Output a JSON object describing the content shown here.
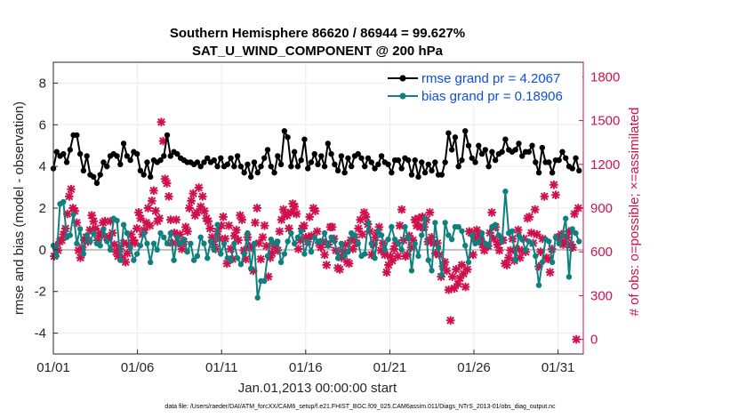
{
  "chart_data": {
    "type": "line",
    "title": "Southern Hemisphere 86620 / 86944 = 99.627%",
    "subtitle": "SAT_U_WIND_COMPONENT @ 200 hPa",
    "xlabel": "Jan.01,2013 00:00:00 start",
    "ylabel": "rmse and bias (model - observation)",
    "ylabel_right": "# of obs: o=possible; ×=assimilated",
    "xlim": [
      0,
      31.5
    ],
    "ylim": [
      -5,
      9
    ],
    "ylim_right": [
      -100,
      1900
    ],
    "x_ticks": [
      {
        "x": 0,
        "label": "01/01"
      },
      {
        "x": 5,
        "label": "01/06"
      },
      {
        "x": 10,
        "label": "01/11"
      },
      {
        "x": 15,
        "label": "01/16"
      },
      {
        "x": 20,
        "label": "01/21"
      },
      {
        "x": 25,
        "label": "01/26"
      },
      {
        "x": 30,
        "label": "01/31"
      }
    ],
    "y_ticks": [
      -4,
      -2,
      0,
      2,
      4,
      6,
      8
    ],
    "y_ticks_right": [
      0,
      300,
      600,
      900,
      1200,
      1500,
      1800
    ],
    "grid": true,
    "legend_position": "top-right",
    "footer": "data file: /Users/raeder/DAI/ATM_forcXX/CAM6_setup/f.e21.FHIST_BGC.f09_025.CAM6assim.011/Diags_NTrS_2013-01/obs_diag_output.nc",
    "colors": {
      "rmse": "#000000",
      "bias": "#0f8080",
      "obs": "#d0104c",
      "zero_line": "#bfbfbf"
    },
    "series": [
      {
        "name": "rmse grand pr = 4.2067",
        "key": "rmse",
        "values": [
          3.9,
          4.7,
          4.5,
          4.6,
          4.2,
          4.8,
          5.5,
          5.5,
          4.6,
          3.8,
          4.5,
          3.6,
          3.5,
          3.2,
          3.6,
          4.2,
          4.0,
          4.5,
          4.6,
          4.5,
          4.1,
          5.1,
          4.5,
          4.3,
          4.7,
          4.6,
          3.8,
          3.6,
          4.2,
          3.5,
          4.3,
          4.2,
          4.3,
          4.5,
          5.5,
          4.5,
          4.7,
          4.6,
          4.4,
          4.3,
          4.2,
          4.2,
          4.1,
          4.2,
          4.0,
          4.2,
          4.4,
          4.2,
          4.3,
          4.0,
          4.4,
          4.0,
          4.1,
          4.4,
          4.0,
          4.5,
          4.0,
          3.7,
          4.1,
          3.5,
          4.2,
          3.7,
          4.0,
          4.4,
          4.8,
          4.0,
          3.7,
          4.5,
          4.1,
          5.7,
          5.4,
          4.0,
          4.7,
          4.0,
          4.3,
          5.3,
          3.9,
          4.2,
          4.6,
          4.1,
          4.5,
          4.0,
          5.1,
          4.6,
          4.1,
          3.8,
          4.5,
          3.7,
          4.4,
          4.0,
          4.5,
          4.6,
          4.4,
          4.0,
          4.4,
          4.2,
          3.9,
          4.1,
          4.5,
          4.2,
          4.1,
          3.7,
          4.3,
          4.3,
          3.9,
          4.4,
          4.3,
          3.6,
          4.3,
          3.5,
          4.2,
          3.7,
          4.1,
          3.8,
          4.2,
          3.6,
          3.6,
          4.2,
          5.6,
          4.8,
          5.4,
          4.0,
          4.3,
          5.7,
          5.0,
          4.4,
          4.2,
          5.0,
          4.6,
          4.8,
          4.0,
          4.7,
          4.3,
          4.6,
          4.7,
          5.3,
          4.8,
          4.7,
          4.8,
          5.1,
          4.5,
          4.7,
          4.7,
          5.0,
          4.2,
          3.7,
          4.9,
          4.2,
          4.2,
          3.7,
          4.3,
          4.3,
          4.7,
          4.4,
          4.0,
          3.9,
          4.4,
          3.8
        ]
      },
      {
        "name": "bias grand pr = 0.18906",
        "key": "bias",
        "values": [
          0.2,
          -0.3,
          2.2,
          2.3,
          0.6,
          0.7,
          1.7,
          0.3,
          1.0,
          -0.2,
          0.7,
          0.4,
          0.8,
          0.3,
          0.2,
          1.0,
          0.4,
          0.0,
          1.5,
          1.4,
          -0.5,
          1.2,
          0.8,
          0.1,
          -0.5,
          -0.2,
          0.2,
          0.8,
          0.3,
          -0.6,
          0.3,
          0.0,
          0.8,
          0.6,
          0.3,
          0.8,
          -0.5,
          0.6,
          0.3,
          0.5,
          -0.1,
          0.3,
          -0.5,
          -0.3,
          0.6,
          0.3,
          -0.4,
          0.4,
          0.0,
          1.2,
          -0.2,
          0.3,
          -0.4,
          -0.5,
          0.3,
          -0.4,
          -0.7,
          -0.2,
          0.8,
          -0.9,
          0.3,
          -2.3,
          -1.5,
          -1.5,
          -0.3,
          0.5,
          0.3,
          0.4,
          -0.6,
          -0.2,
          0.4,
          0.8,
          0.3,
          0.6,
          0.9,
          -0.2,
          0.4,
          -0.1,
          0.6,
          0.4,
          0.4,
          0.8,
          0.2,
          0.6,
          0.4,
          -0.4,
          0.3,
          -0.3,
          -0.1,
          0.8,
          0.7,
          0.3,
          -0.3,
          -0.2,
          1.3,
          0.3,
          -0.4,
          0.9,
          0.7,
          0.0,
          0.5,
          1.1,
          0.5,
          0.3,
          0.0,
          1.1,
          0.6,
          -1.0,
          0.3,
          -0.3,
          0.7,
          1.5,
          -0.5,
          -1.0,
          1.3,
          0.1,
          -1.2,
          1.3,
          0.7,
          0.5,
          1.1,
          1.1,
          0.9,
          0.2,
          -0.6,
          0.7,
          0.3,
          0.4,
          0.8,
          0.3,
          0.2,
          1.1,
          1.2,
          0.7,
          0.4,
          2.8,
          0.8,
          0.9,
          -0.5,
          0.7,
          0.5,
          0.0,
          0.4,
          0.3,
          -0.3,
          -1.7,
          -0.6,
          0.5,
          0.4,
          -0.6,
          0.6,
          0.3,
          0.7,
          1.5,
          -1.3,
          1.0,
          0.8,
          0.4
        ]
      },
      {
        "name": "obs assimilated",
        "key": "obs",
        "values": [
          570,
          640,
          610,
          670,
          680,
          720,
          760,
          860,
          980,
          1030,
          900,
          880,
          800,
          610,
          560,
          630,
          680,
          700,
          670,
          750,
          850,
          810,
          760,
          680,
          710,
          730,
          800,
          810,
          700,
          690,
          810,
          730,
          650,
          600,
          570,
          620,
          560,
          660,
          530,
          590,
          650,
          720,
          680,
          660,
          760,
          870,
          830,
          720,
          750,
          800,
          900,
          780,
          950,
          1020,
          880,
          810,
          830,
          1490,
          1360,
          1100,
          1070,
          980,
          820,
          660,
          730,
          820,
          660,
          720,
          620,
          670,
          770,
          740,
          900,
          950,
          1000,
          850,
          870,
          1040,
          910,
          980,
          880,
          830,
          810,
          760,
          700,
          650,
          620,
          740,
          690,
          780,
          840,
          690,
          520,
          780,
          620,
          550,
          710,
          750,
          680,
          850,
          820,
          610,
          550,
          700,
          640,
          630,
          470,
          800,
          900,
          660,
          550,
          700,
          780,
          640,
          430,
          560,
          590,
          640,
          660,
          610,
          740,
          820,
          890,
          860,
          850,
          760,
          870,
          930,
          910,
          860,
          620,
          680,
          760,
          780,
          700,
          670,
          840,
          710,
          900,
          880,
          740,
          660,
          630,
          670,
          580,
          510,
          650,
          770,
          770,
          690,
          610,
          490,
          480,
          560,
          600,
          650,
          530,
          520,
          680,
          620,
          700,
          660,
          760,
          820,
          720,
          870,
          840,
          790,
          740,
          580,
          650,
          700,
          730,
          770,
          610,
          660,
          580,
          460,
          510,
          570,
          540,
          620,
          660,
          570,
          780,
          890,
          680,
          570,
          580,
          710,
          630,
          680,
          820,
          780,
          830,
          770,
          840,
          770,
          820,
          670,
          870,
          700,
          660,
          590,
          660,
          580,
          430,
          500,
          530,
          470,
          340,
          130,
          430,
          350,
          480,
          380,
          420,
          510,
          450,
          360,
          480,
          740,
          730,
          580,
          690,
          750,
          720,
          690,
          650,
          610,
          640,
          640,
          730,
          870,
          690,
          770,
          650,
          610,
          680,
          680,
          520,
          510,
          560,
          610,
          690,
          540,
          620,
          750,
          560,
          610,
          690,
          600,
          830,
          840,
          730,
          660,
          890,
          720,
          500,
          600,
          690,
          980,
          560,
          550,
          460,
          620,
          1060,
          990,
          700,
          700,
          720,
          650,
          670,
          700,
          740,
          650,
          630,
          860,
          0,
          900
        ]
      }
    ]
  }
}
